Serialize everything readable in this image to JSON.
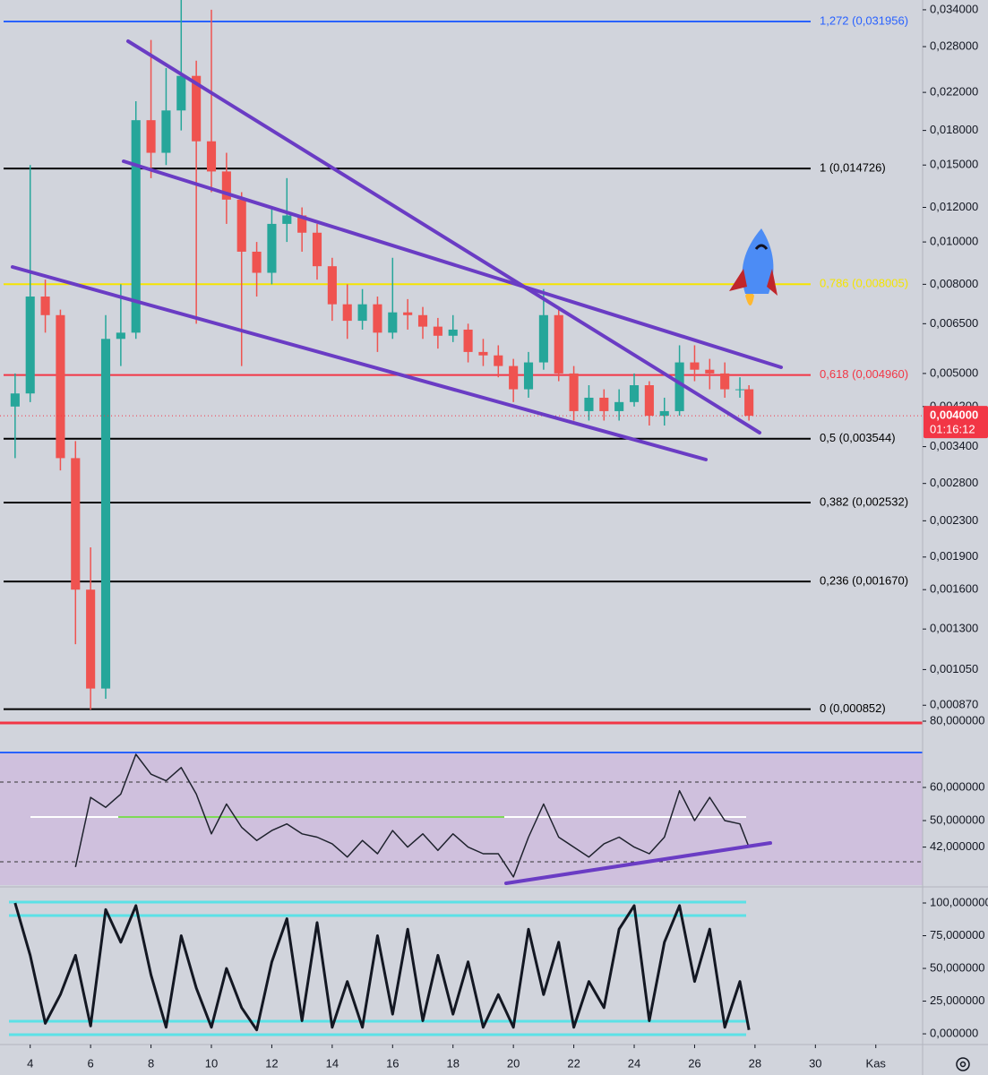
{
  "chart_data": [
    {
      "type": "candlestick",
      "x": [
        3.5,
        4,
        4.5,
        5,
        5.5,
        6,
        6.5,
        7,
        7.5,
        8,
        8.5,
        9,
        9.5,
        10,
        10.5,
        11,
        11.5,
        12,
        12.5,
        13,
        13.5,
        14,
        14.5,
        15,
        15.5,
        16,
        16.5,
        17,
        17.5,
        18,
        18.5,
        19,
        19.5,
        20,
        20.5,
        21,
        21.5,
        22,
        22.5,
        23,
        23.5,
        24,
        24.5,
        25,
        25.5,
        26,
        26.5,
        27,
        27.5,
        27.8
      ],
      "open": [
        0.0042,
        0.0045,
        0.0075,
        0.0068,
        0.0032,
        0.0016,
        0.00095,
        0.006,
        0.0062,
        0.019,
        0.016,
        0.02,
        0.024,
        0.017,
        0.0145,
        0.0125,
        0.0095,
        0.0085,
        0.011,
        0.0115,
        0.0105,
        0.0088,
        0.0072,
        0.0066,
        0.0072,
        0.0062,
        0.0069,
        0.0068,
        0.0064,
        0.0061,
        0.0063,
        0.0056,
        0.0055,
        0.0052,
        0.0046,
        0.0053,
        0.0068,
        0.005,
        0.0041,
        0.0044,
        0.0041,
        0.0043,
        0.0047,
        0.004,
        0.0041,
        0.0053,
        0.0051,
        0.005,
        0.0046,
        0.0046
      ],
      "high": [
        0.005,
        0.015,
        0.0082,
        0.007,
        0.0035,
        0.002,
        0.0068,
        0.008,
        0.021,
        0.029,
        0.025,
        0.036,
        0.026,
        0.034,
        0.016,
        0.013,
        0.01,
        0.012,
        0.014,
        0.012,
        0.011,
        0.0092,
        0.008,
        0.0078,
        0.0075,
        0.0092,
        0.0074,
        0.0071,
        0.0067,
        0.0068,
        0.0065,
        0.006,
        0.0058,
        0.0054,
        0.0056,
        0.0078,
        0.007,
        0.0052,
        0.0047,
        0.0046,
        0.0046,
        0.005,
        0.0048,
        0.0044,
        0.0058,
        0.0058,
        0.0054,
        0.0053,
        0.0049,
        0.0047
      ],
      "low": [
        0.0032,
        0.0043,
        0.0062,
        0.003,
        0.0012,
        0.00085,
        0.0009,
        0.0052,
        0.006,
        0.014,
        0.015,
        0.018,
        0.0065,
        0.013,
        0.011,
        0.0052,
        0.0075,
        0.008,
        0.01,
        0.0095,
        0.0082,
        0.0066,
        0.006,
        0.0063,
        0.0056,
        0.006,
        0.0063,
        0.006,
        0.0057,
        0.0059,
        0.0053,
        0.0052,
        0.0049,
        0.0043,
        0.0044,
        0.0051,
        0.0048,
        0.0039,
        0.0039,
        0.0039,
        0.0039,
        0.0042,
        0.0038,
        0.0038,
        0.004,
        0.0048,
        0.0046,
        0.0044,
        0.0044,
        0.0039
      ],
      "close": [
        0.0045,
        0.0075,
        0.0068,
        0.0032,
        0.0016,
        0.00095,
        0.006,
        0.0062,
        0.019,
        0.016,
        0.02,
        0.024,
        0.017,
        0.0145,
        0.0125,
        0.0095,
        0.0085,
        0.011,
        0.0115,
        0.0105,
        0.0088,
        0.0072,
        0.0066,
        0.0072,
        0.0062,
        0.0069,
        0.0068,
        0.0064,
        0.0061,
        0.0063,
        0.0056,
        0.0055,
        0.0052,
        0.0046,
        0.0053,
        0.0068,
        0.005,
        0.0041,
        0.0044,
        0.0041,
        0.0043,
        0.0047,
        0.004,
        0.0041,
        0.0053,
        0.0051,
        0.005,
        0.0046,
        0.0046,
        0.004
      ],
      "up_color": "#26a69a",
      "down_color": "#ef5350",
      "log_scale": true,
      "xlim": [
        3,
        33.55
      ],
      "ylim": [
        0.0008,
        0.0358
      ],
      "yticks": [
        {
          "value": 0.034,
          "label": "0,034000"
        },
        {
          "value": 0.028,
          "label": "0,028000"
        },
        {
          "value": 0.022,
          "label": "0,022000"
        },
        {
          "value": 0.018,
          "label": "0,018000"
        },
        {
          "value": 0.015,
          "label": "0,015000"
        },
        {
          "value": 0.012,
          "label": "0,012000"
        },
        {
          "value": 0.01,
          "label": "0,010000"
        },
        {
          "value": 0.008,
          "label": "0,008000"
        },
        {
          "value": 0.0065,
          "label": "0,006500"
        },
        {
          "value": 0.005,
          "label": "0,005000"
        },
        {
          "value": 0.0042,
          "label": "0,004200"
        },
        {
          "value": 0.0034,
          "label": "0,003400"
        },
        {
          "value": 0.0028,
          "label": "0,002800"
        },
        {
          "value": 0.0023,
          "label": "0,002300"
        },
        {
          "value": 0.0019,
          "label": "0,001900"
        },
        {
          "value": 0.0016,
          "label": "0,001600"
        },
        {
          "value": 0.0013,
          "label": "0,001300"
        },
        {
          "value": 0.00105,
          "label": "0,001050"
        },
        {
          "value": 0.00087,
          "label": "0,000870"
        }
      ],
      "levels": [
        {
          "value": 0.031956,
          "label": "1,272 (0,031956)",
          "color": "#2962ff"
        },
        {
          "value": 0.014726,
          "label": "1 (0,014726)",
          "color": "#000000"
        },
        {
          "value": 0.008005,
          "label": "0,786 (0,008005)",
          "color": "#f5e400"
        },
        {
          "value": 0.00496,
          "label": "0,618 (0,004960)",
          "color": "#f23645"
        },
        {
          "value": 0.003544,
          "label": "0,5 (0,003544)",
          "color": "#000000"
        },
        {
          "value": 0.002532,
          "label": "0,382 (0,002532)",
          "color": "#000000"
        },
        {
          "value": 0.00167,
          "label": "0,236 (0,001670)",
          "color": "#000000"
        },
        {
          "value": 0.000852,
          "label": "0 (0,000852)",
          "color": "#000000"
        }
      ],
      "last_price": {
        "value": 0.004,
        "label": "0,004000",
        "color": "#f23645"
      },
      "countdown": "01:16:12"
    },
    {
      "type": "line",
      "x": [
        5.5,
        6,
        6.5,
        7,
        7.5,
        8,
        8.5,
        9,
        9.5,
        10,
        10.5,
        11,
        11.5,
        12,
        12.5,
        13,
        13.5,
        14,
        14.5,
        15,
        15.5,
        16,
        16.5,
        17,
        17.5,
        18,
        18.5,
        19,
        19.5,
        20,
        20.5,
        21,
        21.5,
        22,
        22.5,
        23,
        23.5,
        24,
        24.5,
        25,
        25.5,
        26,
        26.5,
        27,
        27.5,
        27.8
      ],
      "series": [
        {
          "color": "#1e222d",
          "values": [
            36,
            57,
            54,
            58,
            70,
            64,
            62,
            66,
            58,
            46,
            55,
            48,
            44,
            47,
            49,
            46,
            45,
            43,
            39,
            44,
            40,
            47,
            42,
            46,
            41,
            46,
            42,
            40,
            40,
            33,
            45,
            55,
            45,
            42,
            39,
            43,
            45,
            42,
            40,
            45,
            59,
            50,
            57,
            50,
            49,
            42
          ]
        }
      ],
      "xlim": [
        3,
        33.55
      ],
      "ylim": [
        30,
        80
      ],
      "yticks": [
        {
          "value": 80,
          "label": "80,000000"
        },
        {
          "value": 60,
          "label": "60,000000"
        },
        {
          "value": 50,
          "label": "50,000000"
        },
        {
          "value": 42,
          "label": "42,000000"
        }
      ]
    },
    {
      "type": "line",
      "x": [
        3.5,
        4,
        4.5,
        5,
        5.5,
        6,
        6.5,
        7,
        7.5,
        8,
        8.5,
        9,
        9.5,
        10,
        10.5,
        11,
        11.5,
        12,
        12.5,
        13,
        13.5,
        14,
        14.5,
        15,
        15.5,
        16,
        16.5,
        17,
        17.5,
        18,
        18.5,
        19,
        19.5,
        20,
        20.5,
        21,
        21.5,
        22,
        22.5,
        23,
        23.5,
        24,
        24.5,
        25,
        25.5,
        26,
        26.5,
        27,
        27.5,
        27.8
      ],
      "series": [
        {
          "color": "#131722",
          "values": [
            100,
            60,
            8,
            30,
            60,
            6,
            95,
            70,
            98,
            45,
            5,
            75,
            35,
            5,
            50,
            20,
            3,
            55,
            88,
            10,
            85,
            5,
            40,
            5,
            75,
            15,
            80,
            10,
            60,
            15,
            55,
            5,
            30,
            5,
            80,
            30,
            70,
            5,
            40,
            20,
            80,
            98,
            10,
            70,
            98,
            40,
            80,
            5,
            40,
            3
          ]
        }
      ],
      "xlim": [
        3,
        33.55
      ],
      "ylim": [
        -7.5,
        108.9
      ],
      "yticks": [
        {
          "value": 100,
          "label": "100,000000"
        },
        {
          "value": 75,
          "label": "75,000000"
        },
        {
          "value": 50,
          "label": "50,000000"
        },
        {
          "value": 25,
          "label": "25,000000"
        },
        {
          "value": 0,
          "label": "0,000000"
        }
      ],
      "xticks": [
        4,
        6,
        8,
        10,
        12,
        14,
        16,
        18,
        20,
        22,
        24,
        26,
        28,
        30,
        {
          "value": 32,
          "label": "Kas"
        }
      ]
    }
  ]
}
